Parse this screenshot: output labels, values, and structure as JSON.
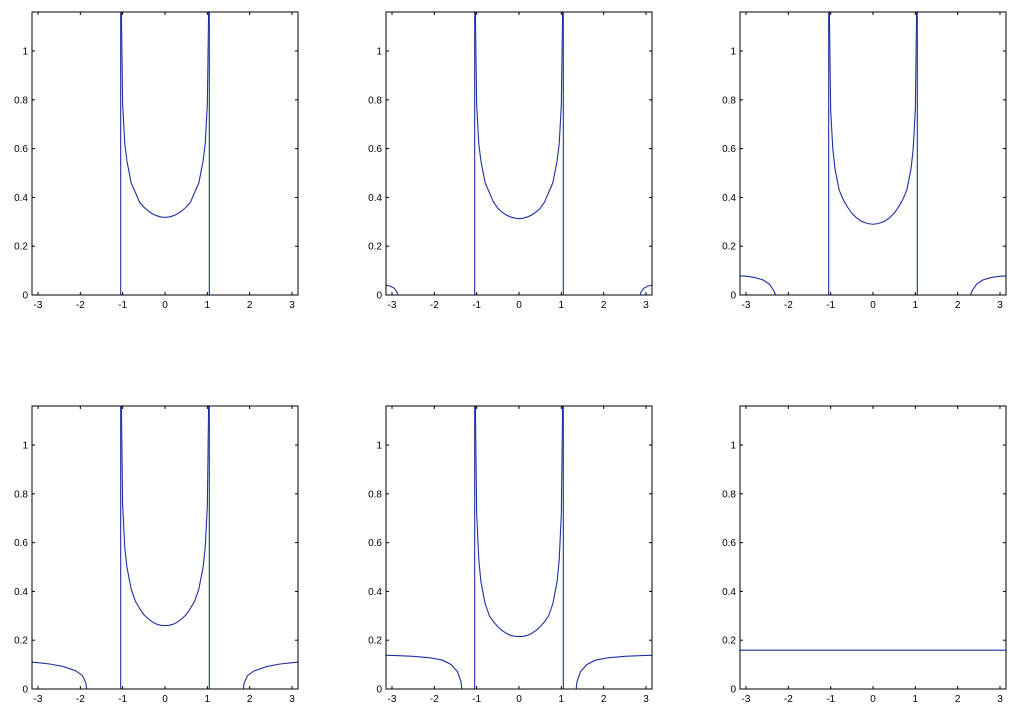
{
  "chart_data": [
    {
      "type": "line",
      "xlim": [
        -3.1416,
        3.1416
      ],
      "ylim": [
        0,
        1.16
      ],
      "xticks": [
        -3,
        -2,
        -1,
        0,
        1,
        2,
        3
      ],
      "yticks": [
        0,
        0.2,
        0.4,
        0.6,
        0.8,
        1
      ],
      "grid": false,
      "series": [
        {
          "color": "#1f2f9f",
          "x": [
            -1.047,
            -1.047
          ],
          "y": [
            0,
            1.16
          ]
        },
        {
          "color": "#1f2f9f",
          "x": [
            1.047,
            1.047
          ],
          "y": [
            0,
            1.16
          ]
        },
        {
          "color": "#1f2f9f",
          "x": [
            -1.03,
            -1.0,
            -0.95,
            -0.9,
            -0.8,
            -0.7,
            -0.6,
            -0.5,
            -0.4,
            -0.3,
            -0.2,
            -0.1,
            0,
            0.1,
            0.2,
            0.3,
            0.4,
            0.5,
            0.6,
            0.7,
            0.8,
            0.9,
            0.95,
            1.0,
            1.03
          ],
          "y": [
            1.16,
            0.78,
            0.62,
            0.55,
            0.46,
            0.42,
            0.38,
            0.36,
            0.345,
            0.333,
            0.325,
            0.32,
            0.318,
            0.32,
            0.325,
            0.333,
            0.345,
            0.36,
            0.38,
            0.42,
            0.46,
            0.55,
            0.62,
            0.78,
            1.16
          ]
        }
      ]
    },
    {
      "type": "line",
      "xlim": [
        -3.1416,
        3.1416
      ],
      "ylim": [
        0,
        1.16
      ],
      "xticks": [
        -3,
        -2,
        -1,
        0,
        1,
        2,
        3
      ],
      "yticks": [
        0,
        0.2,
        0.4,
        0.6,
        0.8,
        1
      ],
      "grid": false,
      "series": [
        {
          "color": "#1f2f9f",
          "x": [
            -1.047,
            -1.047
          ],
          "y": [
            0,
            1.16
          ]
        },
        {
          "color": "#1f2f9f",
          "x": [
            1.047,
            1.047
          ],
          "y": [
            0,
            1.16
          ]
        },
        {
          "color": "#1f2f9f",
          "x": [
            -1.03,
            -1.0,
            -0.95,
            -0.9,
            -0.8,
            -0.7,
            -0.6,
            -0.5,
            -0.4,
            -0.3,
            -0.2,
            -0.1,
            0,
            0.1,
            0.2,
            0.3,
            0.4,
            0.5,
            0.6,
            0.7,
            0.8,
            0.9,
            0.95,
            1.0,
            1.03
          ],
          "y": [
            1.16,
            0.78,
            0.62,
            0.55,
            0.46,
            0.42,
            0.38,
            0.355,
            0.34,
            0.328,
            0.32,
            0.315,
            0.313,
            0.315,
            0.32,
            0.328,
            0.34,
            0.355,
            0.38,
            0.42,
            0.46,
            0.55,
            0.62,
            0.78,
            1.16
          ]
        },
        {
          "color": "#1f2f9f",
          "x": [
            -3.1416,
            -3.05,
            -2.95,
            -2.88,
            -2.86
          ],
          "y": [
            0.04,
            0.037,
            0.028,
            0.012,
            0
          ]
        },
        {
          "color": "#1f2f9f",
          "x": [
            2.86,
            2.88,
            2.95,
            3.05,
            3.1416
          ],
          "y": [
            0,
            0.012,
            0.028,
            0.037,
            0.04
          ]
        }
      ]
    },
    {
      "type": "line",
      "xlim": [
        -3.1416,
        3.1416
      ],
      "ylim": [
        0,
        1.16
      ],
      "xticks": [
        -3,
        -2,
        -1,
        0,
        1,
        2,
        3
      ],
      "yticks": [
        0,
        0.2,
        0.4,
        0.6,
        0.8,
        1
      ],
      "grid": false,
      "series": [
        {
          "color": "#1f2f9f",
          "x": [
            -1.047,
            -1.047
          ],
          "y": [
            0,
            1.16
          ]
        },
        {
          "color": "#1f2f9f",
          "x": [
            1.047,
            1.047
          ],
          "y": [
            0,
            1.16
          ]
        },
        {
          "color": "#1f2f9f",
          "x": [
            -1.03,
            -1.0,
            -0.95,
            -0.9,
            -0.8,
            -0.7,
            -0.6,
            -0.5,
            -0.4,
            -0.3,
            -0.2,
            -0.1,
            0,
            0.1,
            0.2,
            0.3,
            0.4,
            0.5,
            0.6,
            0.7,
            0.8,
            0.9,
            0.95,
            1.0,
            1.03
          ],
          "y": [
            1.16,
            0.76,
            0.6,
            0.52,
            0.43,
            0.39,
            0.36,
            0.335,
            0.318,
            0.305,
            0.297,
            0.292,
            0.29,
            0.292,
            0.297,
            0.305,
            0.318,
            0.335,
            0.36,
            0.39,
            0.43,
            0.52,
            0.6,
            0.76,
            1.16
          ]
        },
        {
          "color": "#1f2f9f",
          "x": [
            -3.1416,
            -3.0,
            -2.8,
            -2.6,
            -2.45,
            -2.35,
            -2.3
          ],
          "y": [
            0.078,
            0.077,
            0.072,
            0.062,
            0.045,
            0.02,
            0
          ]
        },
        {
          "color": "#1f2f9f",
          "x": [
            2.3,
            2.35,
            2.45,
            2.6,
            2.8,
            3.0,
            3.1416
          ],
          "y": [
            0,
            0.02,
            0.045,
            0.062,
            0.072,
            0.077,
            0.078
          ]
        }
      ]
    },
    {
      "type": "line",
      "xlim": [
        -3.1416,
        3.1416
      ],
      "ylim": [
        0,
        1.16
      ],
      "xticks": [
        -3,
        -2,
        -1,
        0,
        1,
        2,
        3
      ],
      "yticks": [
        0,
        0.2,
        0.4,
        0.6,
        0.8,
        1
      ],
      "grid": false,
      "series": [
        {
          "color": "#1f2f9f",
          "x": [
            -1.047,
            -1.047
          ],
          "y": [
            0,
            1.16
          ]
        },
        {
          "color": "#1f2f9f",
          "x": [
            1.047,
            1.047
          ],
          "y": [
            0,
            1.16
          ]
        },
        {
          "color": "#1f2f9f",
          "x": [
            -1.03,
            -1.0,
            -0.95,
            -0.9,
            -0.8,
            -0.7,
            -0.6,
            -0.5,
            -0.4,
            -0.3,
            -0.2,
            -0.1,
            0,
            0.1,
            0.2,
            0.3,
            0.4,
            0.5,
            0.6,
            0.7,
            0.8,
            0.9,
            0.95,
            1.0,
            1.03
          ],
          "y": [
            1.16,
            0.75,
            0.58,
            0.5,
            0.41,
            0.36,
            0.33,
            0.305,
            0.288,
            0.275,
            0.266,
            0.261,
            0.26,
            0.261,
            0.266,
            0.275,
            0.288,
            0.305,
            0.33,
            0.36,
            0.41,
            0.5,
            0.58,
            0.75,
            1.16
          ]
        },
        {
          "color": "#1f2f9f",
          "x": [
            -3.1416,
            -3.0,
            -2.7,
            -2.4,
            -2.1,
            -1.95,
            -1.87,
            -1.85
          ],
          "y": [
            0.11,
            0.108,
            0.102,
            0.092,
            0.074,
            0.055,
            0.025,
            0
          ]
        },
        {
          "color": "#1f2f9f",
          "x": [
            1.85,
            1.87,
            1.95,
            2.1,
            2.4,
            2.7,
            3.0,
            3.1416
          ],
          "y": [
            0,
            0.025,
            0.055,
            0.074,
            0.092,
            0.102,
            0.108,
            0.11
          ]
        }
      ]
    },
    {
      "type": "line",
      "xlim": [
        -3.1416,
        3.1416
      ],
      "ylim": [
        0,
        1.16
      ],
      "xticks": [
        -3,
        -2,
        -1,
        0,
        1,
        2,
        3
      ],
      "yticks": [
        0,
        0.2,
        0.4,
        0.6,
        0.8,
        1
      ],
      "grid": false,
      "series": [
        {
          "color": "#1f2f9f",
          "x": [
            -1.047,
            -1.047
          ],
          "y": [
            0,
            1.16
          ]
        },
        {
          "color": "#1f2f9f",
          "x": [
            1.047,
            1.047
          ],
          "y": [
            0,
            1.16
          ]
        },
        {
          "color": "#1f2f9f",
          "x": [
            -1.03,
            -1.0,
            -0.95,
            -0.9,
            -0.8,
            -0.7,
            -0.6,
            -0.5,
            -0.4,
            -0.3,
            -0.2,
            -0.1,
            0,
            0.1,
            0.2,
            0.3,
            0.4,
            0.5,
            0.6,
            0.7,
            0.8,
            0.9,
            0.95,
            1.0,
            1.03
          ],
          "y": [
            1.16,
            0.72,
            0.53,
            0.44,
            0.35,
            0.3,
            0.275,
            0.255,
            0.24,
            0.228,
            0.22,
            0.216,
            0.215,
            0.216,
            0.22,
            0.228,
            0.24,
            0.255,
            0.275,
            0.3,
            0.35,
            0.44,
            0.53,
            0.72,
            1.16
          ]
        },
        {
          "color": "#1f2f9f",
          "x": [
            -3.1416,
            -2.9,
            -2.5,
            -2.1,
            -1.8,
            -1.6,
            -1.45,
            -1.37,
            -1.35
          ],
          "y": [
            0.138,
            0.137,
            0.134,
            0.128,
            0.118,
            0.1,
            0.07,
            0.03,
            0
          ]
        },
        {
          "color": "#1f2f9f",
          "x": [
            1.35,
            1.37,
            1.45,
            1.6,
            1.8,
            2.1,
            2.5,
            2.9,
            3.1416
          ],
          "y": [
            0,
            0.03,
            0.07,
            0.1,
            0.118,
            0.128,
            0.134,
            0.137,
            0.138
          ]
        }
      ]
    },
    {
      "type": "line",
      "xlim": [
        -3.1416,
        3.1416
      ],
      "ylim": [
        0,
        1.16
      ],
      "xticks": [
        -3,
        -2,
        -1,
        0,
        1,
        2,
        3
      ],
      "yticks": [
        0,
        0.2,
        0.4,
        0.6,
        0.8,
        1
      ],
      "grid": false,
      "series": [
        {
          "color": "#1f2f9f",
          "x": [
            -3.1416,
            3.1416
          ],
          "y": [
            0.159,
            0.159
          ]
        }
      ]
    }
  ]
}
